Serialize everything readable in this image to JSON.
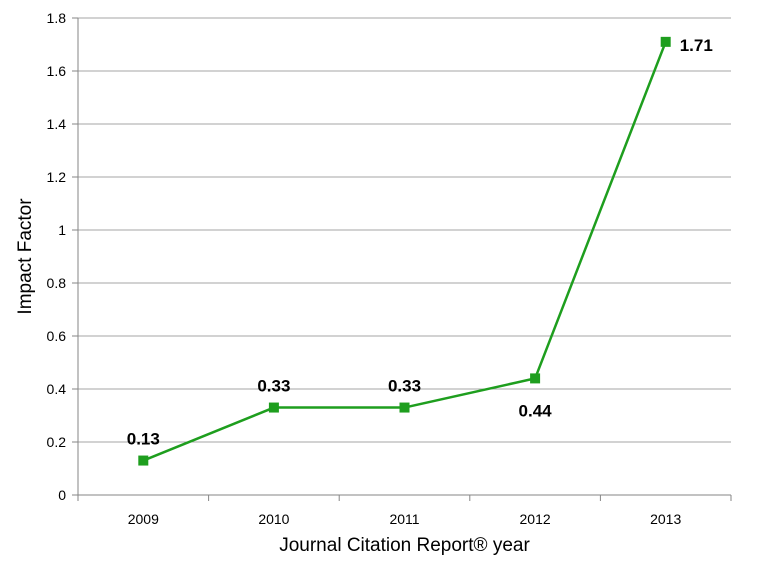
{
  "chart_data": {
    "type": "line",
    "categories": [
      "2009",
      "2010",
      "2011",
      "2012",
      "2013"
    ],
    "series": [
      {
        "values": [
          0.13,
          0.33,
          0.33,
          0.44,
          1.71
        ],
        "color": "#1e9e1e"
      }
    ],
    "data_labels": [
      "0.13",
      "0.33",
      "0.33",
      "0.44",
      "1.71"
    ],
    "xlabel": "Journal Citation Report® year",
    "ylabel": "Impact Factor",
    "ylim": [
      0,
      1.8
    ],
    "yticks": [
      "0",
      "0.2",
      "0.4",
      "0.6",
      "0.8",
      "1",
      "1.2",
      "1.4",
      "1.6",
      "1.8"
    ],
    "grid": true,
    "legend": "none",
    "gridline_color": "#a6a6a6",
    "axis_color": "#868686"
  }
}
